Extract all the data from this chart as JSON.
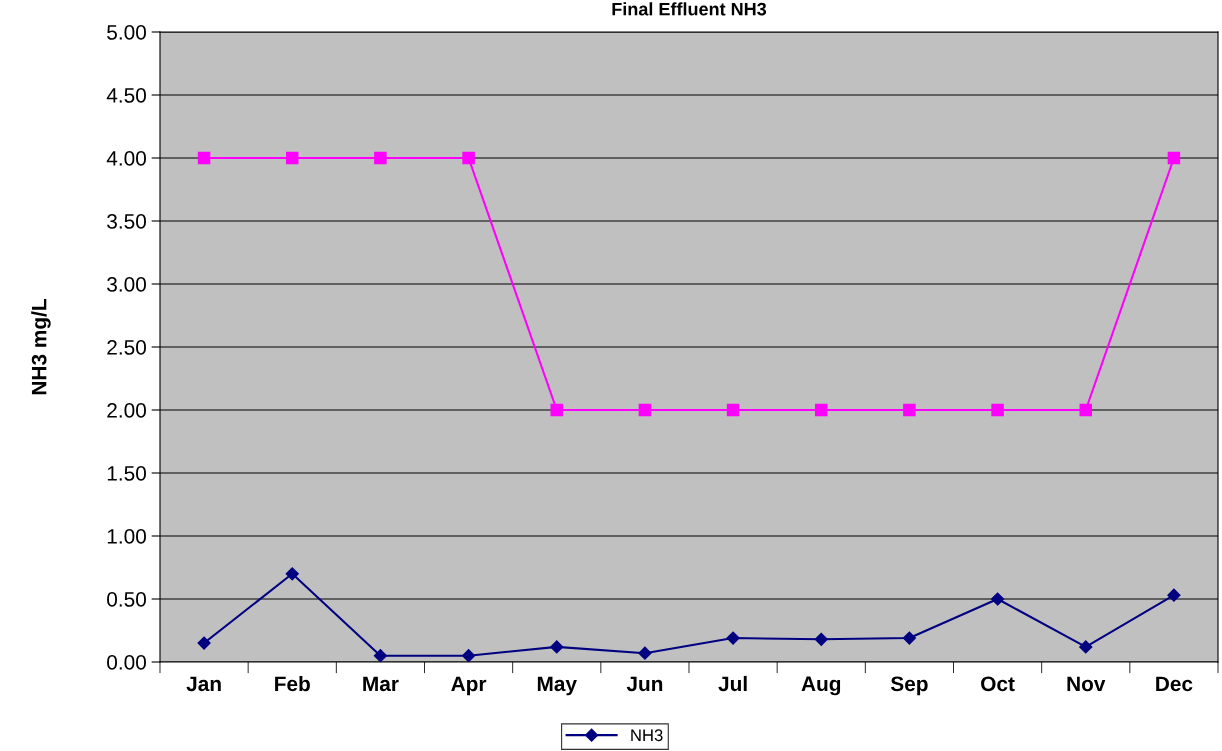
{
  "chart_data": {
    "type": "line",
    "title": "Final Effluent NH3",
    "ylabel": "NH3 mg/L",
    "categories": [
      "Jan",
      "Feb",
      "Mar",
      "Apr",
      "May",
      "Jun",
      "Jul",
      "Aug",
      "Sep",
      "Oct",
      "Nov",
      "Dec"
    ],
    "series": [
      {
        "name": "NH3",
        "color": "#000080",
        "marker": "diamond",
        "values": [
          0.15,
          0.7,
          0.05,
          0.05,
          0.12,
          0.07,
          0.19,
          0.18,
          0.19,
          0.5,
          0.12,
          0.53
        ]
      },
      {
        "color": "#ff00ff",
        "marker": "square",
        "values": [
          4,
          4,
          4,
          4,
          2,
          2,
          2,
          2,
          2,
          2,
          2,
          4
        ]
      }
    ],
    "ylim": [
      0,
      5
    ],
    "yticks": [
      {
        "value": 0,
        "label": "0.00"
      },
      {
        "value": 0.5,
        "label": "0.50"
      },
      {
        "value": 1,
        "label": "1.00"
      },
      {
        "value": 1.5,
        "label": "1.50"
      },
      {
        "value": 2,
        "label": "2.00"
      },
      {
        "value": 2.5,
        "label": "2.50"
      },
      {
        "value": 3,
        "label": "3.00"
      },
      {
        "value": 3.5,
        "label": "3.50"
      },
      {
        "value": 4,
        "label": "4.00"
      },
      {
        "value": 4.5,
        "label": "4.50"
      },
      {
        "value": 5,
        "label": "5.00"
      }
    ],
    "grid": "y",
    "legend": "bottom",
    "line_style": "solid"
  }
}
